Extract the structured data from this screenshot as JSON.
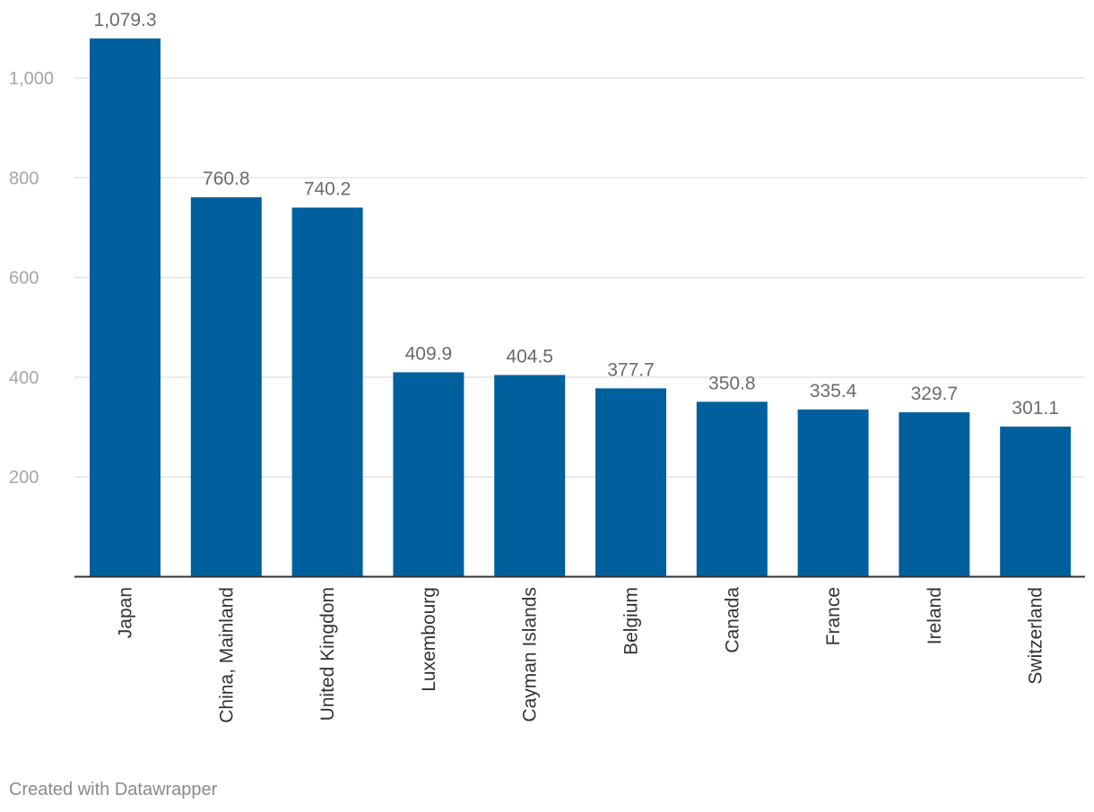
{
  "chart_data": {
    "type": "bar",
    "categories": [
      "Japan",
      "China, Mainland",
      "United Kingdom",
      "Luxembourg",
      "Cayman Islands",
      "Belgium",
      "Canada",
      "France",
      "Ireland",
      "Switzerland"
    ],
    "values": [
      1079.3,
      760.8,
      740.2,
      409.9,
      404.5,
      377.7,
      350.8,
      335.4,
      329.7,
      301.1
    ],
    "value_labels": [
      "1,079.3",
      "760.8",
      "740.2",
      "409.9",
      "404.5",
      "377.7",
      "350.8",
      "335.4",
      "329.7",
      "301.1"
    ],
    "title": "",
    "xlabel": "",
    "ylabel": "",
    "ylim": [
      0,
      1100
    ],
    "yticks": [
      200,
      400,
      600,
      800,
      1000
    ],
    "ytick_labels": [
      "200",
      "400",
      "600",
      "800",
      "1,000"
    ],
    "grid": true,
    "legend": "none",
    "bar_color": "#00609e"
  },
  "footer": {
    "credit": "Created with Datawrapper"
  },
  "colors": {
    "bar": "#00609e",
    "grid": "#e3e3e3",
    "axis": "#333333",
    "tick_label": "#a5a5a5",
    "value_label": "#6b6b6b",
    "category_label": "#333333"
  }
}
